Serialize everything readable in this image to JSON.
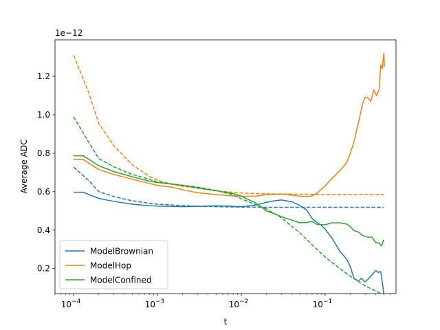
{
  "chart_data": {
    "type": "line",
    "title": "",
    "xlabel": "t",
    "ylabel": "Average ADC",
    "x_scale": "log",
    "xlim": [
      6e-05,
      0.7
    ],
    "ylim": [
      0.07,
      1.39
    ],
    "y_multiplier_label": "1e−12",
    "x_ticks": [
      {
        "value": 0.0001,
        "base": "10",
        "exp": "−4"
      },
      {
        "value": 0.001,
        "base": "10",
        "exp": "−3"
      },
      {
        "value": 0.01,
        "base": "10",
        "exp": "−2"
      },
      {
        "value": 0.1,
        "base": "10",
        "exp": "−1"
      }
    ],
    "y_ticks": [
      {
        "value": 0.2,
        "label": "0.2"
      },
      {
        "value": 0.4,
        "label": "0.4"
      },
      {
        "value": 0.6,
        "label": "0.6"
      },
      {
        "value": 0.8,
        "label": "0.8"
      },
      {
        "value": 1.0,
        "label": "1.0"
      },
      {
        "value": 1.2,
        "label": "1.2"
      }
    ],
    "grid": false,
    "legend": {
      "position": "bottom-left",
      "entries": [
        "ModelBrownian",
        "ModelHop",
        "ModelConfined"
      ]
    },
    "series": [
      {
        "name": "ModelBrownian",
        "color": "#1f77b4",
        "style": "solid",
        "points": [
          [
            0.0001,
            0.597
          ],
          [
            0.00013,
            0.597
          ],
          [
            0.0002,
            0.565
          ],
          [
            0.0003,
            0.55
          ],
          [
            0.0005,
            0.535
          ],
          [
            0.0008,
            0.527
          ],
          [
            0.001,
            0.525
          ],
          [
            0.002,
            0.522
          ],
          [
            0.003,
            0.524
          ],
          [
            0.005,
            0.527
          ],
          [
            0.008,
            0.524
          ],
          [
            0.01,
            0.522
          ],
          [
            0.015,
            0.53
          ],
          [
            0.02,
            0.545
          ],
          [
            0.025,
            0.553
          ],
          [
            0.03,
            0.557
          ],
          [
            0.04,
            0.548
          ],
          [
            0.05,
            0.528
          ],
          [
            0.06,
            0.505
          ],
          [
            0.07,
            0.46
          ],
          [
            0.08,
            0.44
          ],
          [
            0.09,
            0.425
          ],
          [
            0.1,
            0.405
          ],
          [
            0.12,
            0.36
          ],
          [
            0.15,
            0.29
          ],
          [
            0.18,
            0.25
          ],
          [
            0.2,
            0.21
          ],
          [
            0.22,
            0.15
          ],
          [
            0.25,
            0.135
          ],
          [
            0.27,
            0.15
          ],
          [
            0.3,
            0.13
          ],
          [
            0.35,
            0.16
          ],
          [
            0.4,
            0.19
          ],
          [
            0.43,
            0.18
          ],
          [
            0.46,
            0.185
          ],
          [
            0.48,
            0.13
          ],
          [
            0.5,
            0.07
          ]
        ]
      },
      {
        "name": "ModelBrownian",
        "color": "#1f77b4",
        "style": "dashed",
        "points": [
          [
            0.0001,
            0.728
          ],
          [
            0.00015,
            0.66
          ],
          [
            0.0002,
            0.6
          ],
          [
            0.0003,
            0.575
          ],
          [
            0.0005,
            0.553
          ],
          [
            0.0008,
            0.54
          ],
          [
            0.001,
            0.535
          ],
          [
            0.002,
            0.528
          ],
          [
            0.003,
            0.524
          ],
          [
            0.005,
            0.522
          ],
          [
            0.01,
            0.52
          ],
          [
            0.02,
            0.519
          ],
          [
            0.05,
            0.519
          ],
          [
            0.1,
            0.519
          ],
          [
            0.2,
            0.519
          ],
          [
            0.5,
            0.519
          ]
        ]
      },
      {
        "name": "ModelHop",
        "color": "#ff7f0e",
        "style": "solid",
        "points": [
          [
            0.0001,
            0.768
          ],
          [
            0.00013,
            0.768
          ],
          [
            0.0002,
            0.715
          ],
          [
            0.0003,
            0.69
          ],
          [
            0.0005,
            0.665
          ],
          [
            0.0008,
            0.643
          ],
          [
            0.001,
            0.633
          ],
          [
            0.0015,
            0.623
          ],
          [
            0.002,
            0.61
          ],
          [
            0.003,
            0.595
          ],
          [
            0.005,
            0.585
          ],
          [
            0.008,
            0.578
          ],
          [
            0.01,
            0.576
          ],
          [
            0.015,
            0.577
          ],
          [
            0.02,
            0.584
          ],
          [
            0.03,
            0.588
          ],
          [
            0.04,
            0.582
          ],
          [
            0.05,
            0.576
          ],
          [
            0.06,
            0.575
          ],
          [
            0.07,
            0.578
          ],
          [
            0.08,
            0.593
          ],
          [
            0.09,
            0.612
          ],
          [
            0.1,
            0.63
          ],
          [
            0.12,
            0.668
          ],
          [
            0.15,
            0.71
          ],
          [
            0.18,
            0.75
          ],
          [
            0.2,
            0.8
          ],
          [
            0.22,
            0.86
          ],
          [
            0.25,
            0.96
          ],
          [
            0.28,
            1.06
          ],
          [
            0.3,
            1.09
          ],
          [
            0.32,
            1.09
          ],
          [
            0.35,
            1.07
          ],
          [
            0.38,
            1.13
          ],
          [
            0.41,
            1.1
          ],
          [
            0.44,
            1.13
          ],
          [
            0.46,
            1.26
          ],
          [
            0.48,
            1.24
          ],
          [
            0.5,
            1.32
          ],
          [
            0.51,
            1.25
          ]
        ]
      },
      {
        "name": "ModelHop",
        "color": "#ff7f0e",
        "style": "dashed",
        "points": [
          [
            0.0001,
            1.31
          ],
          [
            0.00015,
            1.12
          ],
          [
            0.0002,
            0.955
          ],
          [
            0.0003,
            0.84
          ],
          [
            0.0005,
            0.74
          ],
          [
            0.0008,
            0.68
          ],
          [
            0.001,
            0.66
          ],
          [
            0.0015,
            0.638
          ],
          [
            0.002,
            0.628
          ],
          [
            0.003,
            0.618
          ],
          [
            0.005,
            0.605
          ],
          [
            0.01,
            0.593
          ],
          [
            0.02,
            0.589
          ],
          [
            0.05,
            0.587
          ],
          [
            0.1,
            0.586
          ],
          [
            0.2,
            0.586
          ],
          [
            0.5,
            0.586
          ]
        ]
      },
      {
        "name": "ModelConfined",
        "color": "#2ca02c",
        "style": "solid",
        "points": [
          [
            0.0001,
            0.787
          ],
          [
            0.00013,
            0.787
          ],
          [
            0.0002,
            0.735
          ],
          [
            0.0003,
            0.705
          ],
          [
            0.0005,
            0.678
          ],
          [
            0.0008,
            0.655
          ],
          [
            0.001,
            0.648
          ],
          [
            0.002,
            0.633
          ],
          [
            0.003,
            0.62
          ],
          [
            0.005,
            0.605
          ],
          [
            0.008,
            0.59
          ],
          [
            0.01,
            0.577
          ],
          [
            0.015,
            0.54
          ],
          [
            0.02,
            0.5
          ],
          [
            0.025,
            0.485
          ],
          [
            0.03,
            0.47
          ],
          [
            0.04,
            0.452
          ],
          [
            0.05,
            0.438
          ],
          [
            0.06,
            0.44
          ],
          [
            0.07,
            0.445
          ],
          [
            0.08,
            0.43
          ],
          [
            0.09,
            0.428
          ],
          [
            0.1,
            0.428
          ],
          [
            0.12,
            0.438
          ],
          [
            0.15,
            0.438
          ],
          [
            0.18,
            0.432
          ],
          [
            0.2,
            0.418
          ],
          [
            0.22,
            0.398
          ],
          [
            0.25,
            0.39
          ],
          [
            0.28,
            0.372
          ],
          [
            0.3,
            0.368
          ],
          [
            0.33,
            0.362
          ],
          [
            0.36,
            0.365
          ],
          [
            0.4,
            0.336
          ],
          [
            0.44,
            0.332
          ],
          [
            0.47,
            0.318
          ],
          [
            0.5,
            0.35
          ]
        ]
      },
      {
        "name": "ModelConfined",
        "color": "#2ca02c",
        "style": "dashed",
        "points": [
          [
            0.0001,
            0.99
          ],
          [
            0.00015,
            0.86
          ],
          [
            0.0002,
            0.772
          ],
          [
            0.0003,
            0.73
          ],
          [
            0.0005,
            0.69
          ],
          [
            0.0008,
            0.665
          ],
          [
            0.001,
            0.65
          ],
          [
            0.002,
            0.634
          ],
          [
            0.003,
            0.624
          ],
          [
            0.005,
            0.607
          ],
          [
            0.008,
            0.583
          ],
          [
            0.01,
            0.563
          ],
          [
            0.02,
            0.51
          ],
          [
            0.03,
            0.465
          ],
          [
            0.05,
            0.385
          ],
          [
            0.08,
            0.3
          ],
          [
            0.1,
            0.26
          ],
          [
            0.15,
            0.2
          ],
          [
            0.2,
            0.16
          ],
          [
            0.3,
            0.11
          ],
          [
            0.5,
            0.063
          ]
        ]
      }
    ]
  }
}
